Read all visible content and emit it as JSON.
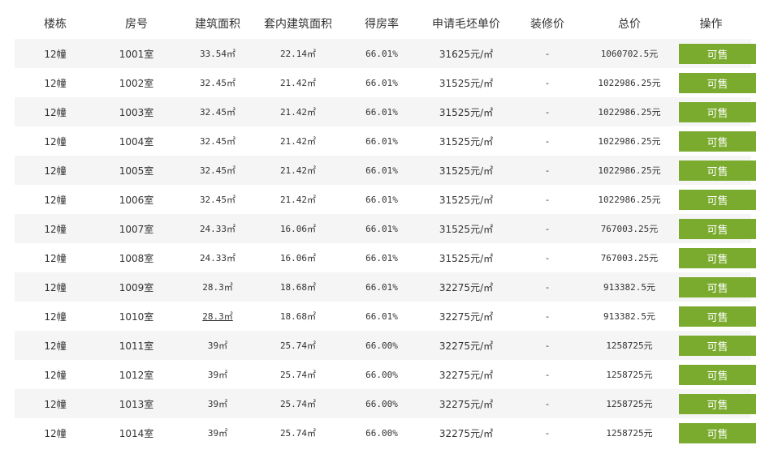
{
  "headers": [
    "楼栋",
    "房号",
    "建筑面积",
    "套内建筑面积",
    "得房率",
    "申请毛坯单价",
    "装修价",
    "总价",
    "操作"
  ],
  "colors": {
    "button": "#7aab2e",
    "stripe": "#f5f5f5"
  },
  "rows": [
    {
      "building": "12幢",
      "room": "1001室",
      "area": "33.54㎡",
      "inner_area": "22.14㎡",
      "ratio": "66.01%",
      "unit_price": "31625元/㎡",
      "decor": "-",
      "total": "1060702.5元",
      "action": "可售"
    },
    {
      "building": "12幢",
      "room": "1002室",
      "area": "32.45㎡",
      "inner_area": "21.42㎡",
      "ratio": "66.01%",
      "unit_price": "31525元/㎡",
      "decor": "-",
      "total": "1022986.25元",
      "action": "可售"
    },
    {
      "building": "12幢",
      "room": "1003室",
      "area": "32.45㎡",
      "inner_area": "21.42㎡",
      "ratio": "66.01%",
      "unit_price": "31525元/㎡",
      "decor": "-",
      "total": "1022986.25元",
      "action": "可售"
    },
    {
      "building": "12幢",
      "room": "1004室",
      "area": "32.45㎡",
      "inner_area": "21.42㎡",
      "ratio": "66.01%",
      "unit_price": "31525元/㎡",
      "decor": "-",
      "total": "1022986.25元",
      "action": "可售"
    },
    {
      "building": "12幢",
      "room": "1005室",
      "area": "32.45㎡",
      "inner_area": "21.42㎡",
      "ratio": "66.01%",
      "unit_price": "31525元/㎡",
      "decor": "-",
      "total": "1022986.25元",
      "action": "可售"
    },
    {
      "building": "12幢",
      "room": "1006室",
      "area": "32.45㎡",
      "inner_area": "21.42㎡",
      "ratio": "66.01%",
      "unit_price": "31525元/㎡",
      "decor": "-",
      "total": "1022986.25元",
      "action": "可售"
    },
    {
      "building": "12幢",
      "room": "1007室",
      "area": "24.33㎡",
      "inner_area": "16.06㎡",
      "ratio": "66.01%",
      "unit_price": "31525元/㎡",
      "decor": "-",
      "total": "767003.25元",
      "action": "可售"
    },
    {
      "building": "12幢",
      "room": "1008室",
      "area": "24.33㎡",
      "inner_area": "16.06㎡",
      "ratio": "66.01%",
      "unit_price": "31525元/㎡",
      "decor": "-",
      "total": "767003.25元",
      "action": "可售"
    },
    {
      "building": "12幢",
      "room": "1009室",
      "area": "28.3㎡",
      "inner_area": "18.68㎡",
      "ratio": "66.01%",
      "unit_price": "32275元/㎡",
      "decor": "-",
      "total": "913382.5元",
      "action": "可售"
    },
    {
      "building": "12幢",
      "room": "1010室",
      "area": "28.3㎡",
      "inner_area": "18.68㎡",
      "ratio": "66.01%",
      "unit_price": "32275元/㎡",
      "decor": "-",
      "total": "913382.5元",
      "action": "可售"
    },
    {
      "building": "12幢",
      "room": "1011室",
      "area": "39㎡",
      "inner_area": "25.74㎡",
      "ratio": "66.00%",
      "unit_price": "32275元/㎡",
      "decor": "-",
      "total": "1258725元",
      "action": "可售"
    },
    {
      "building": "12幢",
      "room": "1012室",
      "area": "39㎡",
      "inner_area": "25.74㎡",
      "ratio": "66.00%",
      "unit_price": "32275元/㎡",
      "decor": "-",
      "total": "1258725元",
      "action": "可售"
    },
    {
      "building": "12幢",
      "room": "1013室",
      "area": "39㎡",
      "inner_area": "25.74㎡",
      "ratio": "66.00%",
      "unit_price": "32275元/㎡",
      "decor": "-",
      "total": "1258725元",
      "action": "可售"
    },
    {
      "building": "12幢",
      "room": "1014室",
      "area": "39㎡",
      "inner_area": "25.74㎡",
      "ratio": "66.00%",
      "unit_price": "32275元/㎡",
      "decor": "-",
      "total": "1258725元",
      "action": "可售"
    }
  ]
}
